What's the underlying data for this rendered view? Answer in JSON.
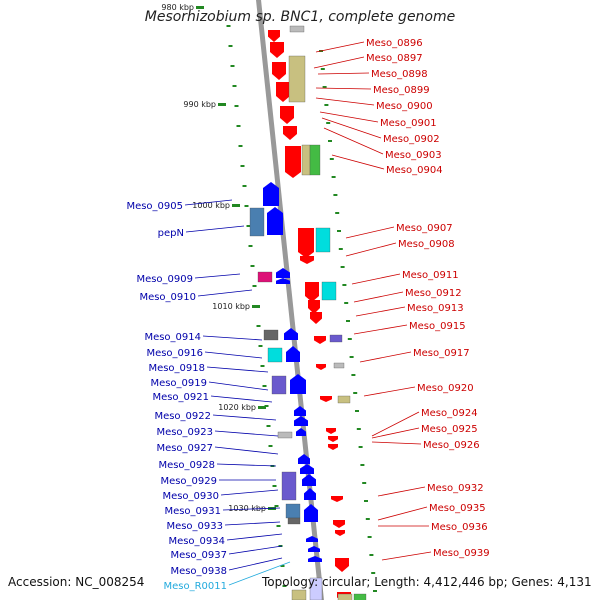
{
  "title": "Mesorhizobium sp. BNC1, complete genome",
  "accession": "Accession: NC_008254",
  "topology": "Topology: circular; Length: 4,412,446 bp; Genes: 4,131",
  "ticks": [
    {
      "label": "980 kbp"
    },
    {
      "label": "990 kbp"
    },
    {
      "label": "1000 kbp"
    },
    {
      "label": "1010 kbp"
    },
    {
      "label": "1020 kbp"
    },
    {
      "label": "1030 kbp"
    }
  ],
  "right_labels": [
    "Meso_0896",
    "Meso_0897",
    "Meso_0898",
    "Meso_0899",
    "Meso_0900",
    "Meso_0901",
    "Meso_0902",
    "Meso_0903",
    "Meso_0904",
    "Meso_0907",
    "Meso_0908",
    "Meso_0911",
    "Meso_0912",
    "Meso_0913",
    "Meso_0915",
    "Meso_0917",
    "Meso_0920",
    "Meso_0924",
    "Meso_0925",
    "Meso_0926",
    "Meso_0932",
    "Meso_0935",
    "Meso_0936",
    "Meso_0939"
  ],
  "left_labels": [
    "Meso_0905",
    "pepN",
    "Meso_0909",
    "Meso_0910",
    "Meso_0914",
    "Meso_0916",
    "Meso_0918",
    "Meso_0919",
    "Meso_0921",
    "Meso_0922",
    "Meso_0923",
    "Meso_0927",
    "Meso_0928",
    "Meso_0929",
    "Meso_0930",
    "Meso_0931",
    "Meso_0933",
    "Meso_0934",
    "Meso_0937",
    "Meso_0938",
    "Meso_R0011"
  ],
  "colors": {
    "forward": "#ff0000",
    "reverse": "#0000ff",
    "forward_label": "#cc0000",
    "reverse_label": "#0000aa",
    "rna_label": "#22aadd",
    "backbone": "#999999",
    "tick": "#228822",
    "khaki": "#c8c080",
    "teal": "#00dddd",
    "green": "#44bb44",
    "slate": "#4a7fb0",
    "gray": "#666666",
    "magenta": "#dd1177",
    "purple": "#6a5acd",
    "lightgray": "#bbbbbb"
  }
}
